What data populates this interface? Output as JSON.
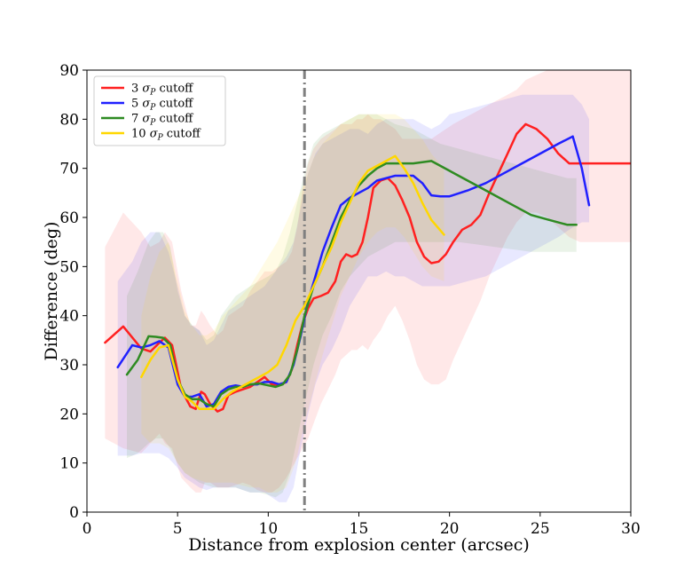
{
  "chart_data": {
    "type": "line",
    "title": "",
    "xlabel": "Distance from explosion center (arcsec)",
    "ylabel": "Difference (deg)",
    "xlim": [
      0,
      30
    ],
    "ylim": [
      0,
      90
    ],
    "xticks": [
      "0",
      "5",
      "10",
      "15",
      "20",
      "25",
      "30"
    ],
    "yticks": [
      "0",
      "10",
      "20",
      "30",
      "40",
      "50",
      "60",
      "70",
      "80",
      "90"
    ],
    "legend_position": "top-left",
    "vline": {
      "x": 12,
      "style": "dash-dot",
      "color": "#808080"
    },
    "series": [
      {
        "name": "3 σP cutoff",
        "label_sigma": "σ",
        "label_sub": "P",
        "label_prefix": "3",
        "label_suffix": "cutoff",
        "color": "#ff2020",
        "x": [
          1.0,
          2.0,
          3.0,
          3.5,
          4.0,
          4.3,
          4.7,
          5.2,
          5.7,
          6.0,
          6.3,
          6.5,
          6.8,
          7.2,
          7.5,
          7.8,
          8.2,
          8.6,
          9.0,
          9.4,
          9.8,
          10.2,
          10.6,
          11.0,
          11.3,
          11.6,
          11.9,
          12.2,
          12.5,
          12.9,
          13.3,
          13.7,
          14.0,
          14.3,
          14.6,
          14.9,
          15.2,
          15.5,
          15.8,
          16.2,
          16.6,
          17.0,
          17.4,
          17.8,
          18.2,
          18.6,
          19.0,
          19.4,
          19.8,
          20.2,
          20.7,
          21.2,
          21.7,
          22.2,
          22.7,
          23.2,
          23.7,
          24.2,
          24.8,
          25.4,
          26.0,
          26.6,
          27.2,
          27.8,
          28.4,
          29.0,
          29.6,
          30.0
        ],
        "y": [
          34.5,
          37.8,
          33.3,
          32.7,
          34.5,
          35.5,
          34.0,
          25.0,
          21.5,
          21.0,
          24.5,
          24.0,
          22.0,
          20.5,
          21.0,
          23.8,
          24.5,
          25.0,
          25.5,
          26.5,
          27.5,
          26.0,
          25.8,
          26.5,
          29.0,
          34.0,
          38.5,
          41.5,
          43.5,
          44.0,
          44.7,
          47.0,
          51.0,
          52.5,
          52.0,
          52.5,
          55.0,
          60.0,
          66.0,
          67.5,
          68.0,
          66.5,
          63.5,
          60.0,
          55.0,
          52.0,
          50.7,
          51.0,
          52.5,
          55.0,
          57.5,
          58.5,
          60.5,
          65.0,
          69.0,
          73.0,
          77.0,
          79.0,
          78.0,
          76.0,
          73.0,
          71.0,
          71.0,
          71.0,
          71.0,
          71.0,
          71.0,
          71.0
        ],
        "lower": [
          15.0,
          13.0,
          12.0,
          14.0,
          16.0,
          14.0,
          13.0,
          7.0,
          5.0,
          4.0,
          4.0,
          6.0,
          6.0,
          5.0,
          5.0,
          5.0,
          5.5,
          6.0,
          5.5,
          4.5,
          4.0,
          4.0,
          5.0,
          7.0,
          9.0,
          11.0,
          13.0,
          15.0,
          18.0,
          22.0,
          25.0,
          28.0,
          31.0,
          32.0,
          33.0,
          33.0,
          34.0,
          33.0,
          35.0,
          37.0,
          40.0,
          42.0,
          39.0,
          35.0,
          30.0,
          27.0,
          26.0,
          26.0,
          27.0,
          31.0,
          35.0,
          39.0,
          43.0,
          48.0,
          52.0,
          56.0,
          59.0,
          61.0,
          61.0,
          60.0,
          58.0,
          56.0,
          55.0,
          55.0,
          55.0,
          55.0,
          55.0,
          55.0
        ],
        "upper": [
          54.0,
          61.0,
          57.0,
          54.0,
          55.0,
          57.0,
          55.0,
          45.0,
          38.0,
          38.0,
          41.0,
          40.0,
          38.0,
          36.0,
          37.0,
          40.0,
          41.0,
          42.0,
          45.0,
          47.0,
          49.0,
          49.0,
          50.0,
          51.0,
          53.0,
          58.0,
          66.0,
          71.0,
          74.0,
          76.0,
          77.0,
          78.0,
          79.0,
          79.0,
          79.0,
          80.0,
          80.0,
          81.0,
          80.0,
          80.0,
          79.0,
          78.0,
          76.0,
          76.0,
          76.0,
          76.0,
          76.0,
          77.0,
          78.0,
          79.0,
          80.0,
          81.0,
          82.0,
          83.0,
          84.0,
          85.0,
          86.0,
          88.0,
          89.0,
          90.0,
          90.0,
          90.0,
          90.0,
          90.0,
          90.0,
          90.0,
          90.0,
          90.0
        ]
      },
      {
        "name": "5 σP cutoff",
        "label_prefix": "5",
        "label_sigma": "σ",
        "label_sub": "P",
        "label_suffix": "cutoff",
        "color": "#2020ff",
        "x": [
          1.7,
          2.5,
          3.0,
          3.5,
          4.0,
          4.5,
          5.0,
          5.4,
          5.8,
          6.2,
          6.6,
          7.0,
          7.4,
          7.8,
          8.2,
          8.6,
          9.0,
          9.4,
          9.8,
          10.2,
          10.6,
          11.0,
          11.4,
          11.8,
          12.2,
          12.6,
          13.0,
          13.5,
          14.0,
          14.5,
          15.0,
          15.5,
          16.0,
          16.5,
          17.0,
          17.5,
          18.0,
          18.5,
          19.0,
          19.5,
          20.0,
          21.0,
          22.0,
          23.0,
          24.0,
          25.0,
          26.0,
          26.8,
          27.3,
          27.7
        ],
        "y": [
          29.5,
          34.0,
          33.5,
          34.0,
          34.8,
          33.5,
          26.0,
          23.5,
          23.5,
          24.0,
          21.5,
          22.0,
          24.5,
          25.5,
          25.8,
          25.5,
          26.0,
          26.0,
          26.5,
          26.5,
          26.0,
          26.5,
          30.0,
          36.0,
          43.0,
          48.0,
          53.0,
          58.0,
          62.5,
          64.0,
          65.0,
          66.0,
          67.5,
          68.0,
          68.5,
          68.5,
          68.5,
          67.0,
          64.5,
          64.3,
          64.3,
          65.5,
          67.0,
          69.0,
          71.0,
          73.0,
          75.0,
          76.5,
          70.0,
          62.5
        ],
        "lower": [
          11.5,
          11.5,
          12.0,
          12.0,
          12.0,
          11.0,
          9.0,
          7.0,
          6.0,
          5.0,
          4.5,
          5.0,
          5.0,
          5.0,
          5.0,
          4.5,
          4.0,
          4.0,
          4.0,
          3.0,
          2.0,
          2.0,
          5.0,
          13.0,
          20.0,
          26.0,
          30.0,
          33.0,
          37.0,
          42.0,
          45.0,
          48.0,
          48.0,
          49.0,
          48.0,
          48.0,
          47.0,
          46.0,
          46.0,
          46.0,
          46.0,
          47.0,
          48.0,
          50.0,
          52.0,
          54.0,
          56.0,
          58.0,
          59.0,
          59.0
        ],
        "upper": [
          47.0,
          51.0,
          55.0,
          57.0,
          57.0,
          53.0,
          46.0,
          40.0,
          38.0,
          37.0,
          34.0,
          35.0,
          38.0,
          41.0,
          42.0,
          43.0,
          44.0,
          45.0,
          46.0,
          48.0,
          50.0,
          52.0,
          55.0,
          62.0,
          69.0,
          73.0,
          75.0,
          76.0,
          77.0,
          78.0,
          78.0,
          77.0,
          79.0,
          80.0,
          80.0,
          80.0,
          80.0,
          79.0,
          78.0,
          79.0,
          81.0,
          82.0,
          83.0,
          84.0,
          85.0,
          85.0,
          85.0,
          85.0,
          83.0,
          80.0
        ]
      },
      {
        "name": "7 σP cutoff",
        "label_prefix": "7",
        "label_sigma": "σ",
        "label_sub": "P",
        "label_suffix": "cutoff",
        "color": "#2e8b22",
        "x": [
          2.2,
          2.8,
          3.4,
          3.8,
          4.2,
          4.6,
          5.0,
          5.4,
          5.8,
          6.2,
          6.6,
          7.0,
          7.4,
          7.8,
          8.2,
          8.6,
          9.0,
          9.5,
          10.0,
          10.4,
          10.8,
          11.2,
          11.6,
          12.0,
          12.5,
          13.0,
          13.5,
          14.0,
          14.5,
          15.0,
          15.5,
          16.0,
          16.5,
          17.0,
          18.0,
          19.0,
          19.5,
          20.5,
          21.5,
          22.5,
          23.5,
          24.5,
          25.5,
          26.5,
          27.0
        ],
        "y": [
          28.0,
          31.0,
          35.8,
          35.7,
          35.5,
          34.0,
          27.0,
          24.0,
          23.0,
          23.0,
          22.0,
          21.5,
          24.0,
          25.0,
          25.5,
          25.5,
          26.0,
          26.2,
          25.8,
          25.5,
          26.0,
          28.0,
          33.0,
          40.0,
          46.0,
          50.0,
          55.0,
          60.0,
          63.5,
          66.5,
          68.5,
          70.0,
          71.0,
          71.0,
          71.0,
          71.5,
          70.5,
          68.5,
          66.5,
          64.5,
          62.5,
          60.5,
          59.5,
          58.5,
          58.5
        ],
        "lower": [
          11.0,
          12.0,
          14.0,
          15.0,
          15.0,
          13.0,
          10.0,
          8.0,
          7.0,
          6.0,
          5.5,
          5.0,
          5.0,
          5.0,
          5.0,
          4.5,
          4.0,
          4.0,
          3.5,
          3.0,
          4.0,
          8.0,
          15.0,
          22.0,
          30.0,
          36.0,
          40.0,
          45.0,
          48.0,
          50.0,
          52.0,
          53.0,
          54.0,
          55.0,
          55.0,
          55.0,
          55.0,
          55.0,
          54.5,
          54.0,
          53.5,
          53.0,
          53.0,
          53.0,
          53.0
        ],
        "upper": [
          44.0,
          49.0,
          55.0,
          57.0,
          57.0,
          54.0,
          45.0,
          40.0,
          38.0,
          37.0,
          35.0,
          36.0,
          40.0,
          42.0,
          44.0,
          45.0,
          46.0,
          47.0,
          48.0,
          49.0,
          52.0,
          57.0,
          63.0,
          69.0,
          75.0,
          77.0,
          78.0,
          79.0,
          80.0,
          81.0,
          81.0,
          81.0,
          80.0,
          79.0,
          78.0,
          76.0,
          75.0,
          74.0,
          73.0,
          72.0,
          71.0,
          70.0,
          69.0,
          68.0,
          68.0
        ]
      },
      {
        "name": "10 σP cutoff",
        "label_prefix": "10",
        "label_sigma": "σ",
        "label_sub": "P",
        "label_suffix": "cutoff",
        "color": "#ffd700",
        "x": [
          3.0,
          3.5,
          4.0,
          4.5,
          5.0,
          5.4,
          5.8,
          6.2,
          6.6,
          7.0,
          7.5,
          8.0,
          8.5,
          9.0,
          9.5,
          10.0,
          10.5,
          11.0,
          11.5,
          12.0,
          12.5,
          13.0,
          13.5,
          14.0,
          14.5,
          15.0,
          15.5,
          16.0,
          16.5,
          17.0,
          17.5,
          18.0,
          18.5,
          19.0,
          19.7
        ],
        "y": [
          27.5,
          31.0,
          33.5,
          34.0,
          27.0,
          23.5,
          22.5,
          21.0,
          21.0,
          21.0,
          23.0,
          24.5,
          25.5,
          26.5,
          27.5,
          28.5,
          30.0,
          34.0,
          39.0,
          42.0,
          46.0,
          50.0,
          54.0,
          59.0,
          63.0,
          67.0,
          69.5,
          70.5,
          71.5,
          72.5,
          70.0,
          67.0,
          63.0,
          59.5,
          56.5
        ],
        "lower": [
          16.0,
          14.0,
          14.0,
          13.0,
          10.0,
          8.0,
          7.0,
          6.5,
          6.0,
          6.0,
          6.0,
          6.0,
          5.5,
          5.0,
          5.0,
          4.0,
          4.0,
          5.0,
          10.0,
          18.0,
          25.0,
          32.0,
          38.0,
          44.0,
          48.0,
          52.0,
          55.0,
          57.0,
          58.0,
          58.0,
          56.0,
          53.0,
          50.0,
          48.0,
          47.0
        ],
        "upper": [
          40.0,
          48.0,
          53.0,
          55.0,
          47.0,
          41.0,
          38.0,
          36.0,
          36.0,
          37.0,
          40.0,
          42.0,
          44.0,
          46.0,
          49.0,
          52.0,
          55.0,
          59.0,
          63.0,
          67.0,
          72.0,
          75.0,
          77.0,
          79.0,
          80.0,
          81.0,
          81.0,
          81.0,
          81.0,
          81.0,
          80.0,
          78.0,
          76.0,
          73.0,
          70.0
        ]
      }
    ]
  }
}
